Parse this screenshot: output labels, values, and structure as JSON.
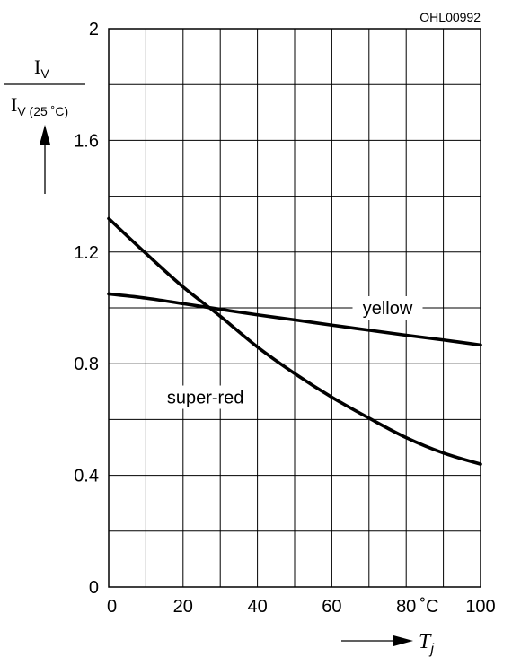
{
  "chart_data": {
    "type": "line",
    "figure_id": "OHL00992",
    "x_ticks": [
      "0",
      "20",
      "40",
      "60",
      "80",
      "100"
    ],
    "x_unit": "˚C",
    "y_ticks": [
      "0",
      "0.4",
      "0.8",
      "1.2",
      "1.6",
      "2"
    ],
    "xlim": [
      0,
      100
    ],
    "ylim": [
      0,
      2
    ],
    "x_grid_step": 10,
    "y_grid_step": 0.2,
    "ylabel": {
      "main": "I",
      "main_sub": "V",
      "den": "I",
      "den_sub": "V (25 ˚C)"
    },
    "xlabel": {
      "main": "T",
      "sub": "j"
    },
    "series": [
      {
        "name": "yellow",
        "x": [
          0,
          10,
          20,
          30,
          40,
          50,
          60,
          70,
          80,
          90,
          100
        ],
        "y": [
          1.05,
          1.035,
          1.015,
          0.995,
          0.975,
          0.957,
          0.938,
          0.92,
          0.902,
          0.885,
          0.867
        ]
      },
      {
        "name": "super-red",
        "x": [
          0,
          10,
          20,
          30,
          40,
          50,
          60,
          70,
          80,
          90,
          100
        ],
        "y": [
          1.32,
          1.195,
          1.075,
          0.97,
          0.86,
          0.765,
          0.68,
          0.605,
          0.535,
          0.48,
          0.44
        ]
      }
    ]
  }
}
